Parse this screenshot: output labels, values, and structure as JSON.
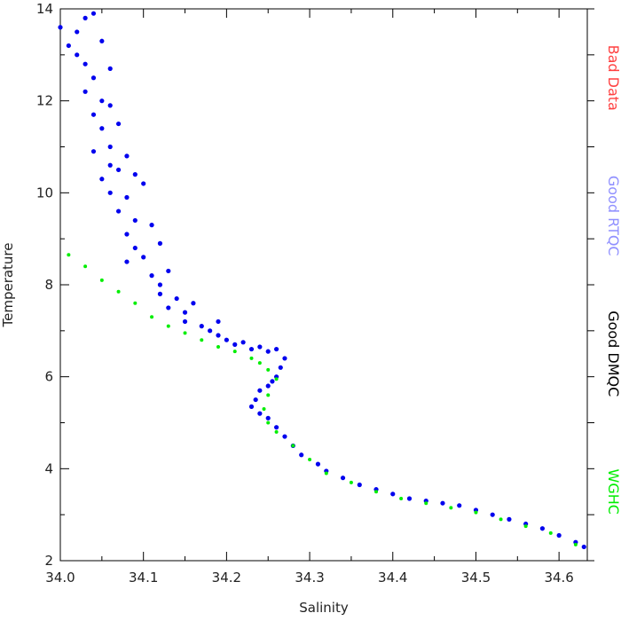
{
  "chart_data": {
    "type": "scatter",
    "x_label": "Salinity",
    "y_label": "Temperature",
    "xlim": [
      34.0,
      34.634
    ],
    "ylim": [
      2,
      14
    ],
    "xticks": [
      {
        "value": 34.0,
        "label": "34.0"
      },
      34.1,
      34.2,
      34.3,
      34.4,
      34.5,
      34.6
    ],
    "xminorticks": [
      34.05,
      34.15,
      34.25,
      34.35,
      34.45,
      34.55
    ],
    "yticks": [
      2,
      4,
      6,
      8,
      10,
      12,
      14
    ],
    "yminorticks": [
      3,
      5,
      7,
      9,
      11,
      13
    ],
    "legend_position": "right",
    "series": [
      {
        "name": "Bad Data",
        "color": "#ff4040",
        "legend_color": "#ff4040",
        "x": [],
        "values": []
      },
      {
        "name": "Good RTQC",
        "color": "#9090ff",
        "legend_color": "#9090ff",
        "x": [],
        "values": []
      },
      {
        "name": "Good DMQC",
        "color": "#0000ee",
        "legend_color": "#000000",
        "x": [
          34.0,
          34.01,
          34.02,
          34.03,
          34.04,
          34.02,
          34.03,
          34.05,
          34.04,
          34.06,
          34.03,
          34.05,
          34.04,
          34.06,
          34.05,
          34.07,
          34.06,
          34.04,
          34.06,
          34.05,
          34.07,
          34.08,
          34.09,
          34.06,
          34.08,
          34.1,
          34.07,
          34.09,
          34.08,
          34.11,
          34.09,
          34.1,
          34.12,
          34.08,
          34.11,
          34.12,
          34.13,
          34.12,
          34.14,
          34.13,
          34.15,
          34.16,
          34.15,
          34.17,
          34.18,
          34.19,
          34.19,
          34.2,
          34.21,
          34.22,
          34.23,
          34.24,
          34.25,
          34.26,
          34.27,
          34.265,
          34.26,
          34.255,
          34.25,
          34.24,
          34.235,
          34.23,
          34.24,
          34.25,
          34.26,
          34.27,
          34.28,
          34.29,
          34.31,
          34.32,
          34.34,
          34.36,
          34.38,
          34.4,
          34.42,
          34.44,
          34.46,
          34.48,
          34.5,
          34.52,
          34.54,
          34.56,
          34.58,
          34.6,
          34.62,
          34.63
        ],
        "values": [
          13.6,
          13.2,
          13.5,
          13.8,
          13.9,
          13.0,
          12.8,
          13.3,
          12.5,
          12.7,
          12.2,
          12.0,
          11.7,
          11.9,
          11.4,
          11.5,
          11.0,
          10.9,
          10.6,
          10.3,
          10.5,
          10.8,
          10.4,
          10.0,
          9.9,
          10.2,
          9.6,
          9.4,
          9.1,
          9.3,
          8.8,
          8.6,
          8.9,
          8.5,
          8.2,
          8.0,
          8.3,
          7.8,
          7.7,
          7.5,
          7.4,
          7.6,
          7.2,
          7.1,
          7.0,
          7.2,
          6.9,
          6.8,
          6.7,
          6.75,
          6.6,
          6.65,
          6.55,
          6.6,
          6.4,
          6.2,
          6.0,
          5.9,
          5.8,
          5.7,
          5.5,
          5.35,
          5.2,
          5.1,
          4.9,
          4.7,
          4.5,
          4.3,
          4.1,
          3.95,
          3.8,
          3.65,
          3.55,
          3.45,
          3.35,
          3.3,
          3.25,
          3.2,
          3.1,
          3.0,
          2.9,
          2.8,
          2.7,
          2.55,
          2.4,
          2.3
        ]
      },
      {
        "name": "WGHC",
        "color": "#00ee00",
        "legend_color": "#00ee00",
        "x": [
          34.01,
          34.03,
          34.05,
          34.07,
          34.09,
          34.11,
          34.13,
          34.15,
          34.17,
          34.19,
          34.21,
          34.23,
          34.24,
          34.25,
          34.26,
          34.25,
          34.245,
          34.25,
          34.26,
          34.28,
          34.3,
          34.32,
          34.35,
          34.38,
          34.41,
          34.44,
          34.47,
          34.5,
          34.53,
          34.56,
          34.59,
          34.62
        ],
        "values": [
          8.65,
          8.4,
          8.1,
          7.85,
          7.6,
          7.3,
          7.1,
          6.95,
          6.8,
          6.65,
          6.55,
          6.4,
          6.3,
          6.15,
          5.95,
          5.6,
          5.3,
          5.0,
          4.8,
          4.5,
          4.2,
          3.9,
          3.7,
          3.5,
          3.35,
          3.25,
          3.15,
          3.05,
          2.9,
          2.75,
          2.6,
          2.35
        ]
      }
    ]
  }
}
